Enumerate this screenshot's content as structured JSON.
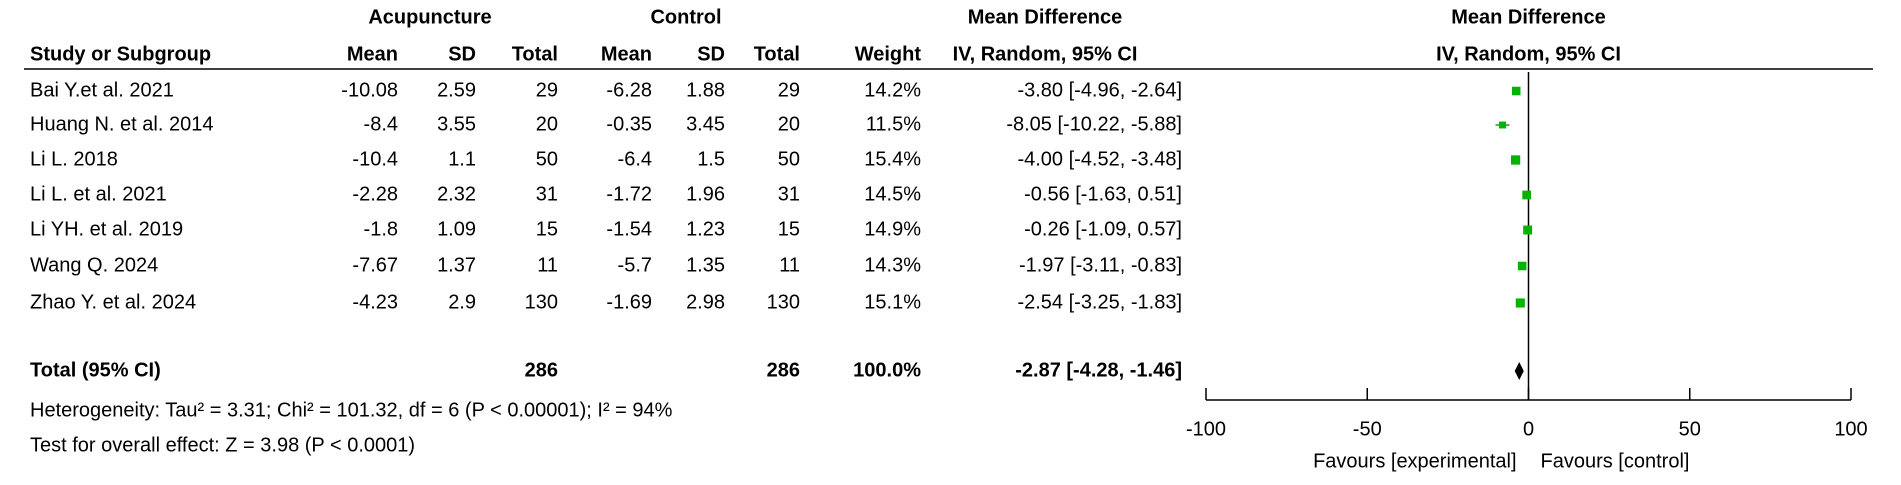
{
  "chart_data": {
    "type": "forest",
    "header_groups": [
      "Acupuncture",
      "Control",
      "Mean Difference",
      "Mean Difference"
    ],
    "columns": [
      "Study or Subgroup",
      "Mean",
      "SD",
      "Total",
      "Mean",
      "SD",
      "Total",
      "Weight",
      "IV, Random, 95% CI",
      "IV, Random, 95% CI"
    ],
    "studies": [
      {
        "name": "Bai Y.et al. 2021",
        "exp_mean": -10.08,
        "exp_sd": 2.59,
        "exp_total": 29,
        "ctl_mean": -6.28,
        "ctl_sd": 1.88,
        "ctl_total": 29,
        "weight": 14.2,
        "weight_label": "14.2%",
        "md": -3.8,
        "ci": [
          -4.96,
          -2.64
        ],
        "md_label": "-3.80 [-4.96, -2.64]"
      },
      {
        "name": "Huang N. et al. 2014",
        "exp_mean": -8.4,
        "exp_sd": 3.55,
        "exp_total": 20,
        "ctl_mean": -0.35,
        "ctl_sd": 3.45,
        "ctl_total": 20,
        "weight": 11.5,
        "weight_label": "11.5%",
        "md": -8.05,
        "ci": [
          -10.22,
          -5.88
        ],
        "md_label": "-8.05 [-10.22, -5.88]"
      },
      {
        "name": "Li L. 2018",
        "exp_mean": -10.4,
        "exp_sd": 1.1,
        "exp_total": 50,
        "ctl_mean": -6.4,
        "ctl_sd": 1.5,
        "ctl_total": 50,
        "weight": 15.4,
        "weight_label": "15.4%",
        "md": -4.0,
        "ci": [
          -4.52,
          -3.48
        ],
        "md_label": "-4.00 [-4.52, -3.48]"
      },
      {
        "name": "Li L. et al. 2021",
        "exp_mean": -2.28,
        "exp_sd": 2.32,
        "exp_total": 31,
        "ctl_mean": -1.72,
        "ctl_sd": 1.96,
        "ctl_total": 31,
        "weight": 14.5,
        "weight_label": "14.5%",
        "md": -0.56,
        "ci": [
          -1.63,
          0.51
        ],
        "md_label": "-0.56 [-1.63, 0.51]"
      },
      {
        "name": "Li YH. et al. 2019",
        "exp_mean": -1.8,
        "exp_sd": 1.09,
        "exp_total": 15,
        "ctl_mean": -1.54,
        "ctl_sd": 1.23,
        "ctl_total": 15,
        "weight": 14.9,
        "weight_label": "14.9%",
        "md": -0.26,
        "ci": [
          -1.09,
          0.57
        ],
        "md_label": "-0.26 [-1.09, 0.57]"
      },
      {
        "name": "Wang Q. 2024",
        "exp_mean": -7.67,
        "exp_sd": 1.37,
        "exp_total": 11,
        "ctl_mean": -5.7,
        "ctl_sd": 1.35,
        "ctl_total": 11,
        "weight": 14.3,
        "weight_label": "14.3%",
        "md": -1.97,
        "ci": [
          -3.11,
          -0.83
        ],
        "md_label": "-1.97 [-3.11, -0.83]"
      },
      {
        "name": "Zhao Y. et al. 2024",
        "exp_mean": -4.23,
        "exp_sd": 2.9,
        "exp_total": 130,
        "ctl_mean": -1.69,
        "ctl_sd": 2.98,
        "ctl_total": 130,
        "weight": 15.1,
        "weight_label": "15.1%",
        "md": -2.54,
        "ci": [
          -3.25,
          -1.83
        ],
        "md_label": "-2.54 [-3.25, -1.83]"
      }
    ],
    "total": {
      "name": "Total (95% CI)",
      "exp_total": 286,
      "ctl_total": 286,
      "weight": 100,
      "weight_label": "100.0%",
      "md": -2.87,
      "ci": [
        -4.28,
        -1.46
      ],
      "md_label": "-2.87 [-4.28, -1.46]"
    },
    "heterogeneity": "Heterogeneity: Tau² = 3.31; Chi² = 101.32, df = 6 (P < 0.00001); I² = 94%",
    "overall_effect": "Test for overall effect: Z = 3.98 (P < 0.0001)",
    "xlim": [
      -100,
      100
    ],
    "xticks": [
      -100,
      -50,
      0,
      50,
      100
    ],
    "favours_left": "Favours [experimental]",
    "favours_right": "Favours [control]",
    "color": "#00b400",
    "total_color": "#000000"
  }
}
